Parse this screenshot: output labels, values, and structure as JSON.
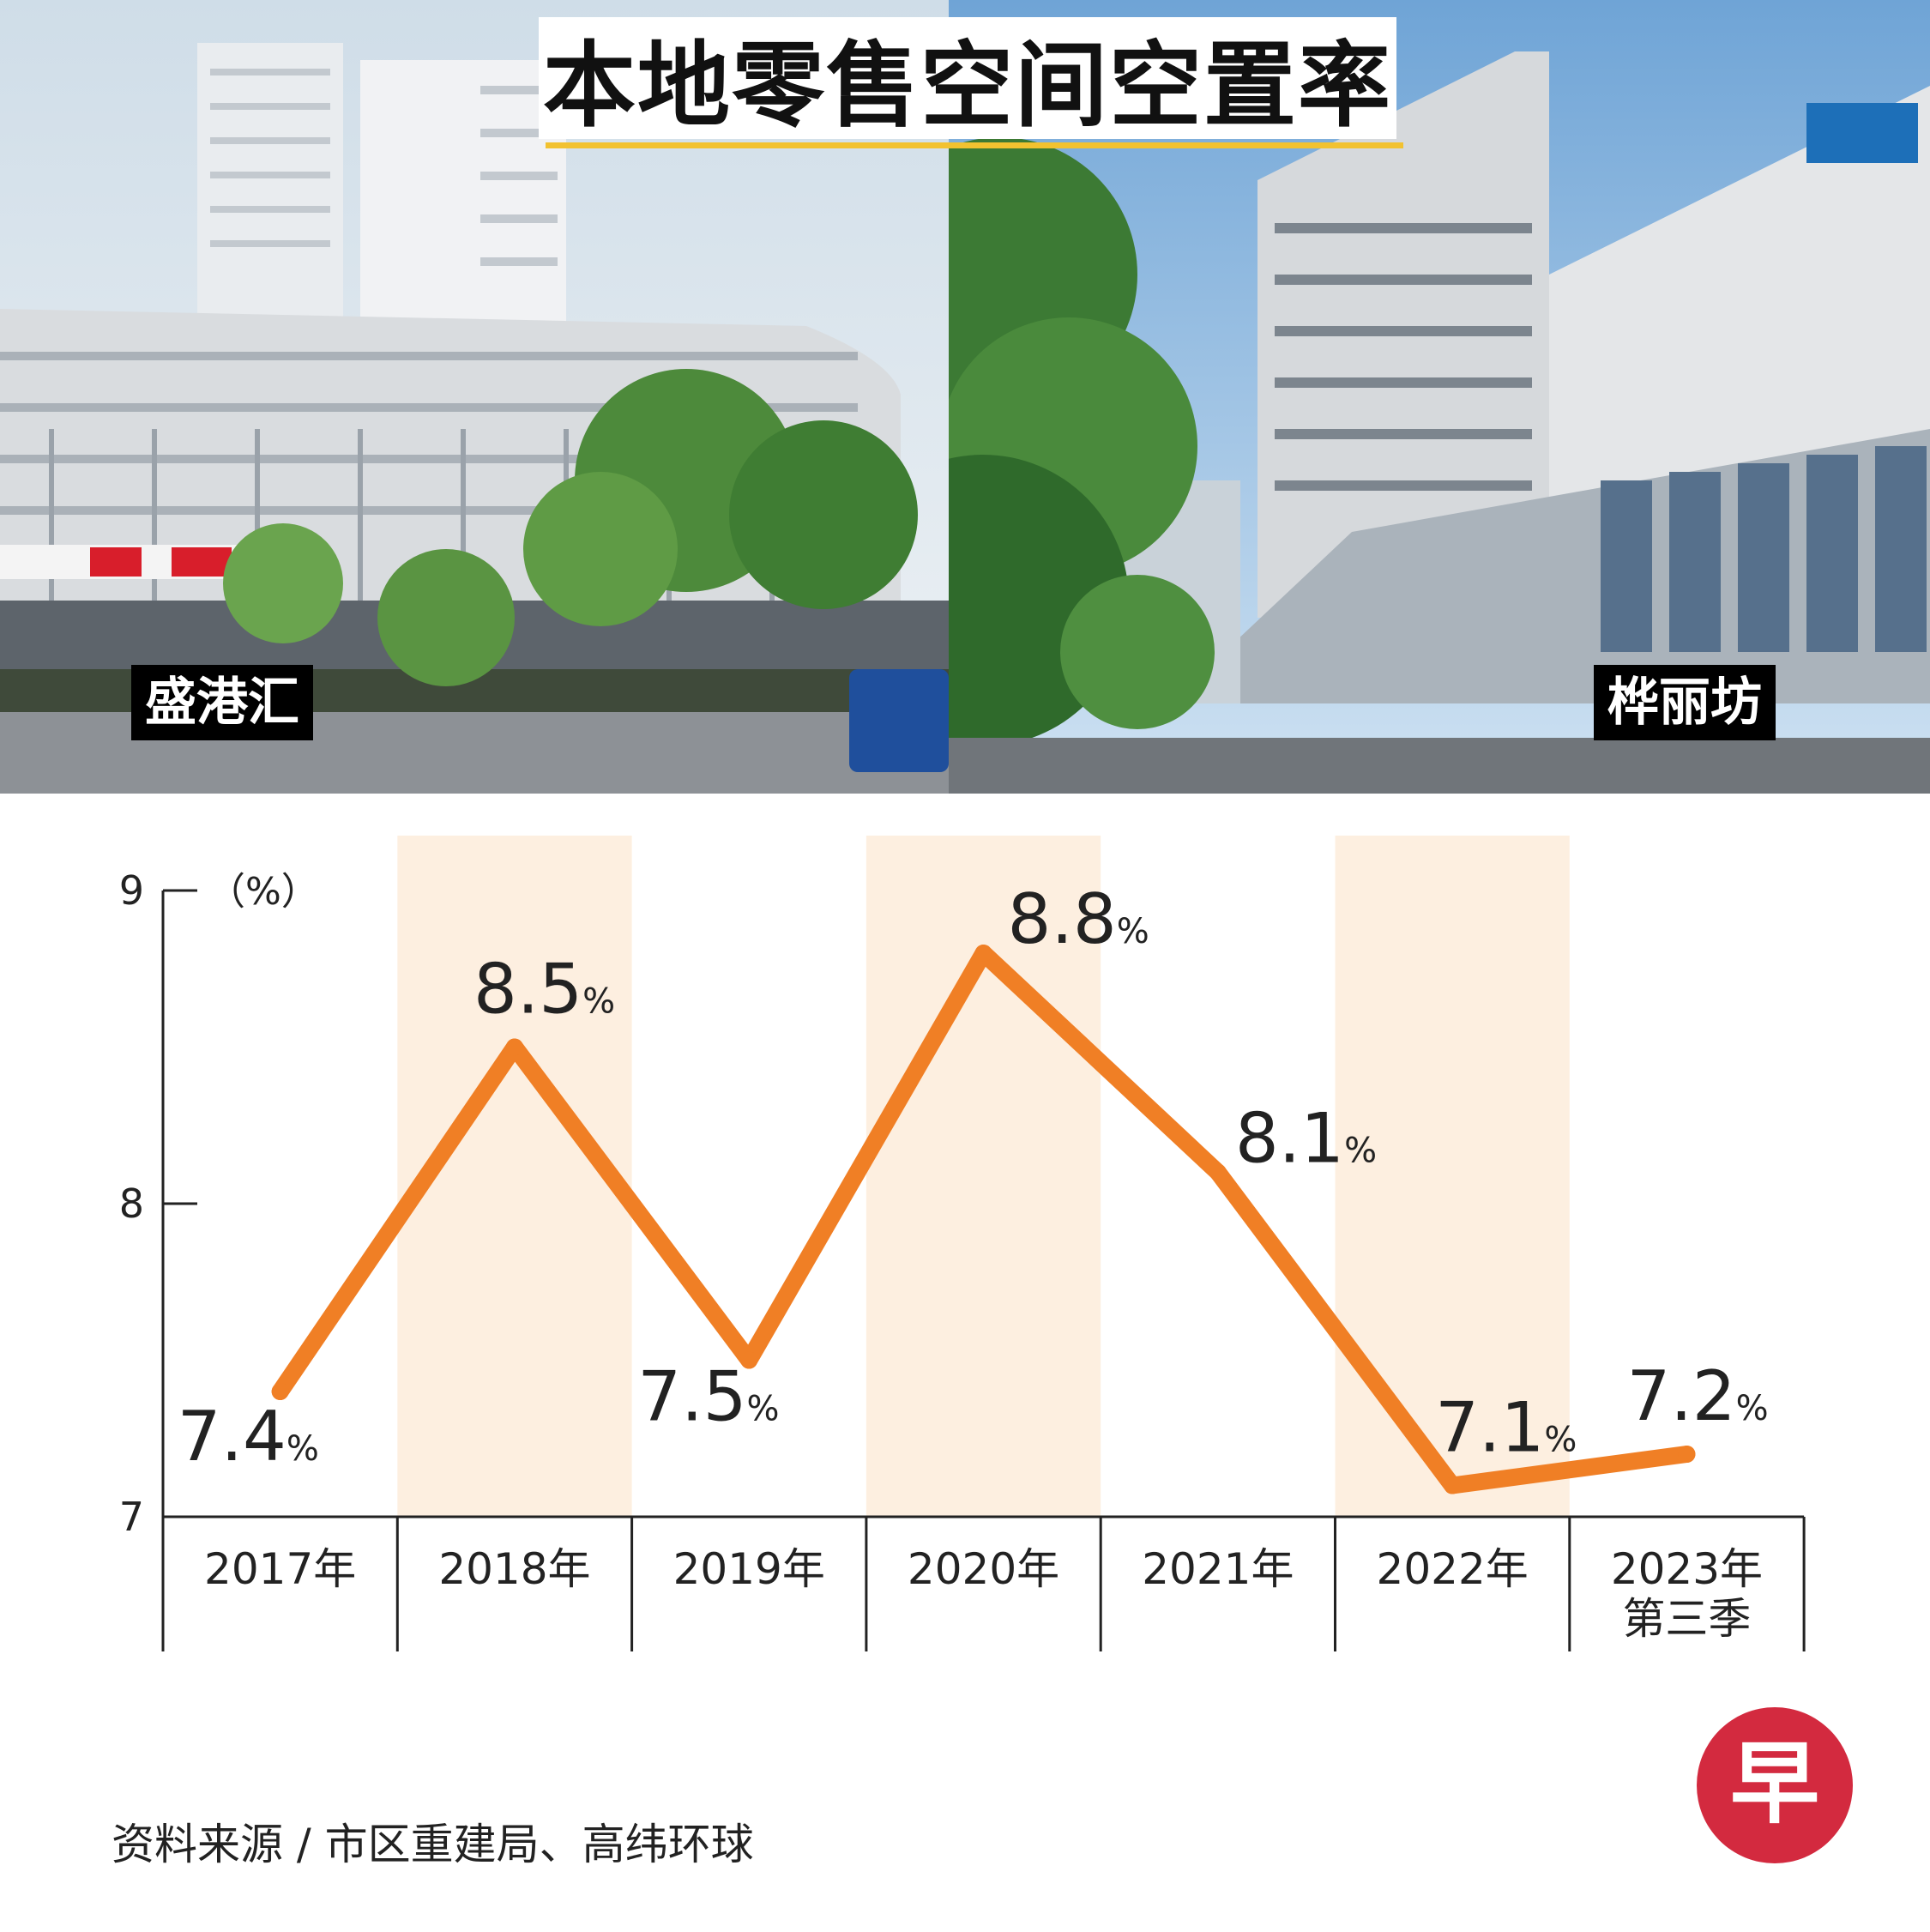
{
  "title": "本地零售空间空置率",
  "photo_labels": {
    "left": "盛港汇",
    "right": "桦丽坊"
  },
  "chart_data": {
    "type": "line",
    "unit_label": "（%）",
    "categories": [
      "2017年",
      "2018年",
      "2019年",
      "2020年",
      "2021年",
      "2022年",
      "2023年\n第三季"
    ],
    "values": [
      7.4,
      8.5,
      7.5,
      8.8,
      8.1,
      7.1,
      7.2
    ],
    "value_labels": [
      "7.4",
      "8.5",
      "7.5",
      "8.8",
      "8.1",
      "7.1",
      "7.2"
    ],
    "label_suffix": "%",
    "ylim": [
      7,
      9
    ],
    "yticks": [
      "7",
      "8",
      "9"
    ],
    "line_color": "#f07f25",
    "band_color": "#fdefe0",
    "shaded_categories": [
      1,
      3,
      5
    ]
  },
  "source": "资料来源 / 市区重建局、高纬环球",
  "logo": {
    "char": "早",
    "color": "#d32a3f",
    "icon": "zaobao-logo"
  }
}
